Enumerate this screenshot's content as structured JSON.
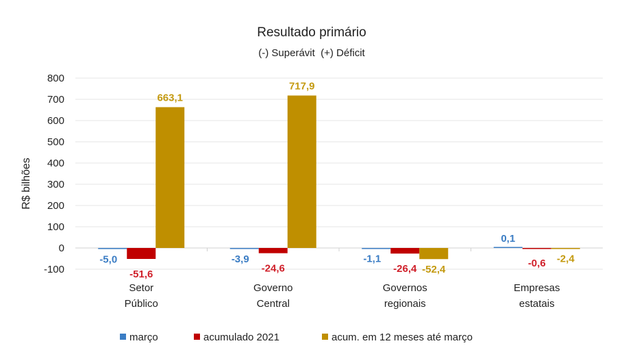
{
  "chart_data": {
    "type": "bar",
    "title": "Resultado primário",
    "subtitle": "(-) Superávit  (+) Déficit",
    "ylabel": "R$ bilhões",
    "xlabel": "",
    "ylim": [
      -100,
      800
    ],
    "yticks": [
      -100,
      0,
      100,
      200,
      300,
      400,
      500,
      600,
      700,
      800
    ],
    "grid": true,
    "legend_position": "bottom",
    "categories": [
      [
        "Setor",
        "Público"
      ],
      [
        "Governo",
        "Central"
      ],
      [
        "Governos",
        "regionais"
      ],
      [
        "Empresas",
        "estatais"
      ]
    ],
    "series": [
      {
        "name": "março",
        "color": "#3b7dc4",
        "values": [
          -5.0,
          -3.9,
          -1.1,
          0.1
        ],
        "labels": [
          "-5,0",
          "-3,9",
          "-1,1",
          "0,1"
        ]
      },
      {
        "name": "acumulado 2021",
        "color": "#c00000",
        "values": [
          -51.6,
          -24.6,
          -26.4,
          -0.6
        ],
        "labels": [
          "-51,6",
          "-24,6",
          "-26,4",
          "-0,6"
        ]
      },
      {
        "name": "acum. em 12 meses até março",
        "color": "#bf8f00",
        "values": [
          663.1,
          717.9,
          -52.4,
          -2.4
        ],
        "labels": [
          "663,1",
          "717,9",
          "-52,4",
          "-2,4"
        ]
      }
    ],
    "label_colors": [
      "#3b7dc4",
      "#d0202a",
      "#c49a10"
    ]
  }
}
